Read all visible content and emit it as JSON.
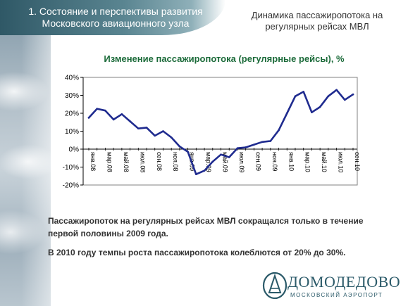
{
  "header": {
    "section_line1": "1. Состояние и перспективы развития",
    "section_line2": "Московского авиационного узла",
    "slide_title_line1": "Динамика пассажиропотока на",
    "slide_title_line2": "регулярных рейсах МВЛ"
  },
  "chart_data": {
    "type": "line",
    "title": "Изменение пассажиропотока (регулярные рейсы), %",
    "xlabel": "",
    "ylabel": "",
    "ylim": [
      -20,
      40
    ],
    "yticks": [
      "40%",
      "30%",
      "20%",
      "10%",
      "0%",
      "-10%",
      "-20%"
    ],
    "grid": false,
    "line_color": "#1f2b8f",
    "categories": [
      "янв.08",
      "фев.08",
      "мар.08",
      "апр.08",
      "май.08",
      "июн.08",
      "июл.08",
      "авг.08",
      "сен.08",
      "окт.08",
      "ноя.08",
      "дек.08",
      "янв.09",
      "фев.09",
      "мар.09",
      "апр.09",
      "май.09",
      "июн.09",
      "июл.09",
      "авг.09",
      "сен.09",
      "окт.09",
      "ноя.09",
      "дек.09",
      "янв.10",
      "фев.10",
      "мар.10",
      "апр.10",
      "май.10",
      "июн.10",
      "июл.10",
      "авг.10",
      "сен.10"
    ],
    "tick_labels": [
      {
        "index": 0,
        "label": "янв.08"
      },
      {
        "index": 2,
        "label": "мар.08"
      },
      {
        "index": 4,
        "label": "май.08"
      },
      {
        "index": 6,
        "label": "июл.08"
      },
      {
        "index": 8,
        "label": "сен.08"
      },
      {
        "index": 10,
        "label": "ноя.08"
      },
      {
        "index": 12,
        "label": "янв.09"
      },
      {
        "index": 14,
        "label": "мар.09"
      },
      {
        "index": 16,
        "label": "май.09"
      },
      {
        "index": 18,
        "label": "июл.09"
      },
      {
        "index": 20,
        "label": "сен.09"
      },
      {
        "index": 22,
        "label": "ноя.09"
      },
      {
        "index": 24,
        "label": "янв.10"
      },
      {
        "index": 26,
        "label": "мар.10"
      },
      {
        "index": 28,
        "label": "май.10"
      },
      {
        "index": 30,
        "label": "июл.10"
      },
      {
        "index": 32,
        "label": "сен.10"
      }
    ],
    "series": [
      {
        "values": [
          17.5,
          22.5,
          21.5,
          16.5,
          19.5,
          15.5,
          11.5,
          12.0,
          7.5,
          10.0,
          6.5,
          1.5,
          -1.5,
          -14.0,
          -12.0,
          -7.0,
          -3.0,
          -4.5,
          0.5,
          1.0,
          2.5,
          4.0,
          4.5,
          10.5,
          20.0,
          29.5,
          32.0,
          20.5,
          23.5,
          29.5,
          33.0,
          27.5,
          30.5
        ]
      }
    ]
  },
  "text": {
    "paragraph1": "Пассажиропоток на регулярных рейсах МВЛ сокращался только в течение первой половины 2009 года.",
    "paragraph2": "В 2010 году темпы роста пассажиропотока колеблются от 20% до 30%."
  },
  "logo": {
    "name": "ДОМОДЕДОВО",
    "subtitle": "МОСКОВСКИЙ АЭРОПОРТ",
    "color": "#2b5a69"
  }
}
